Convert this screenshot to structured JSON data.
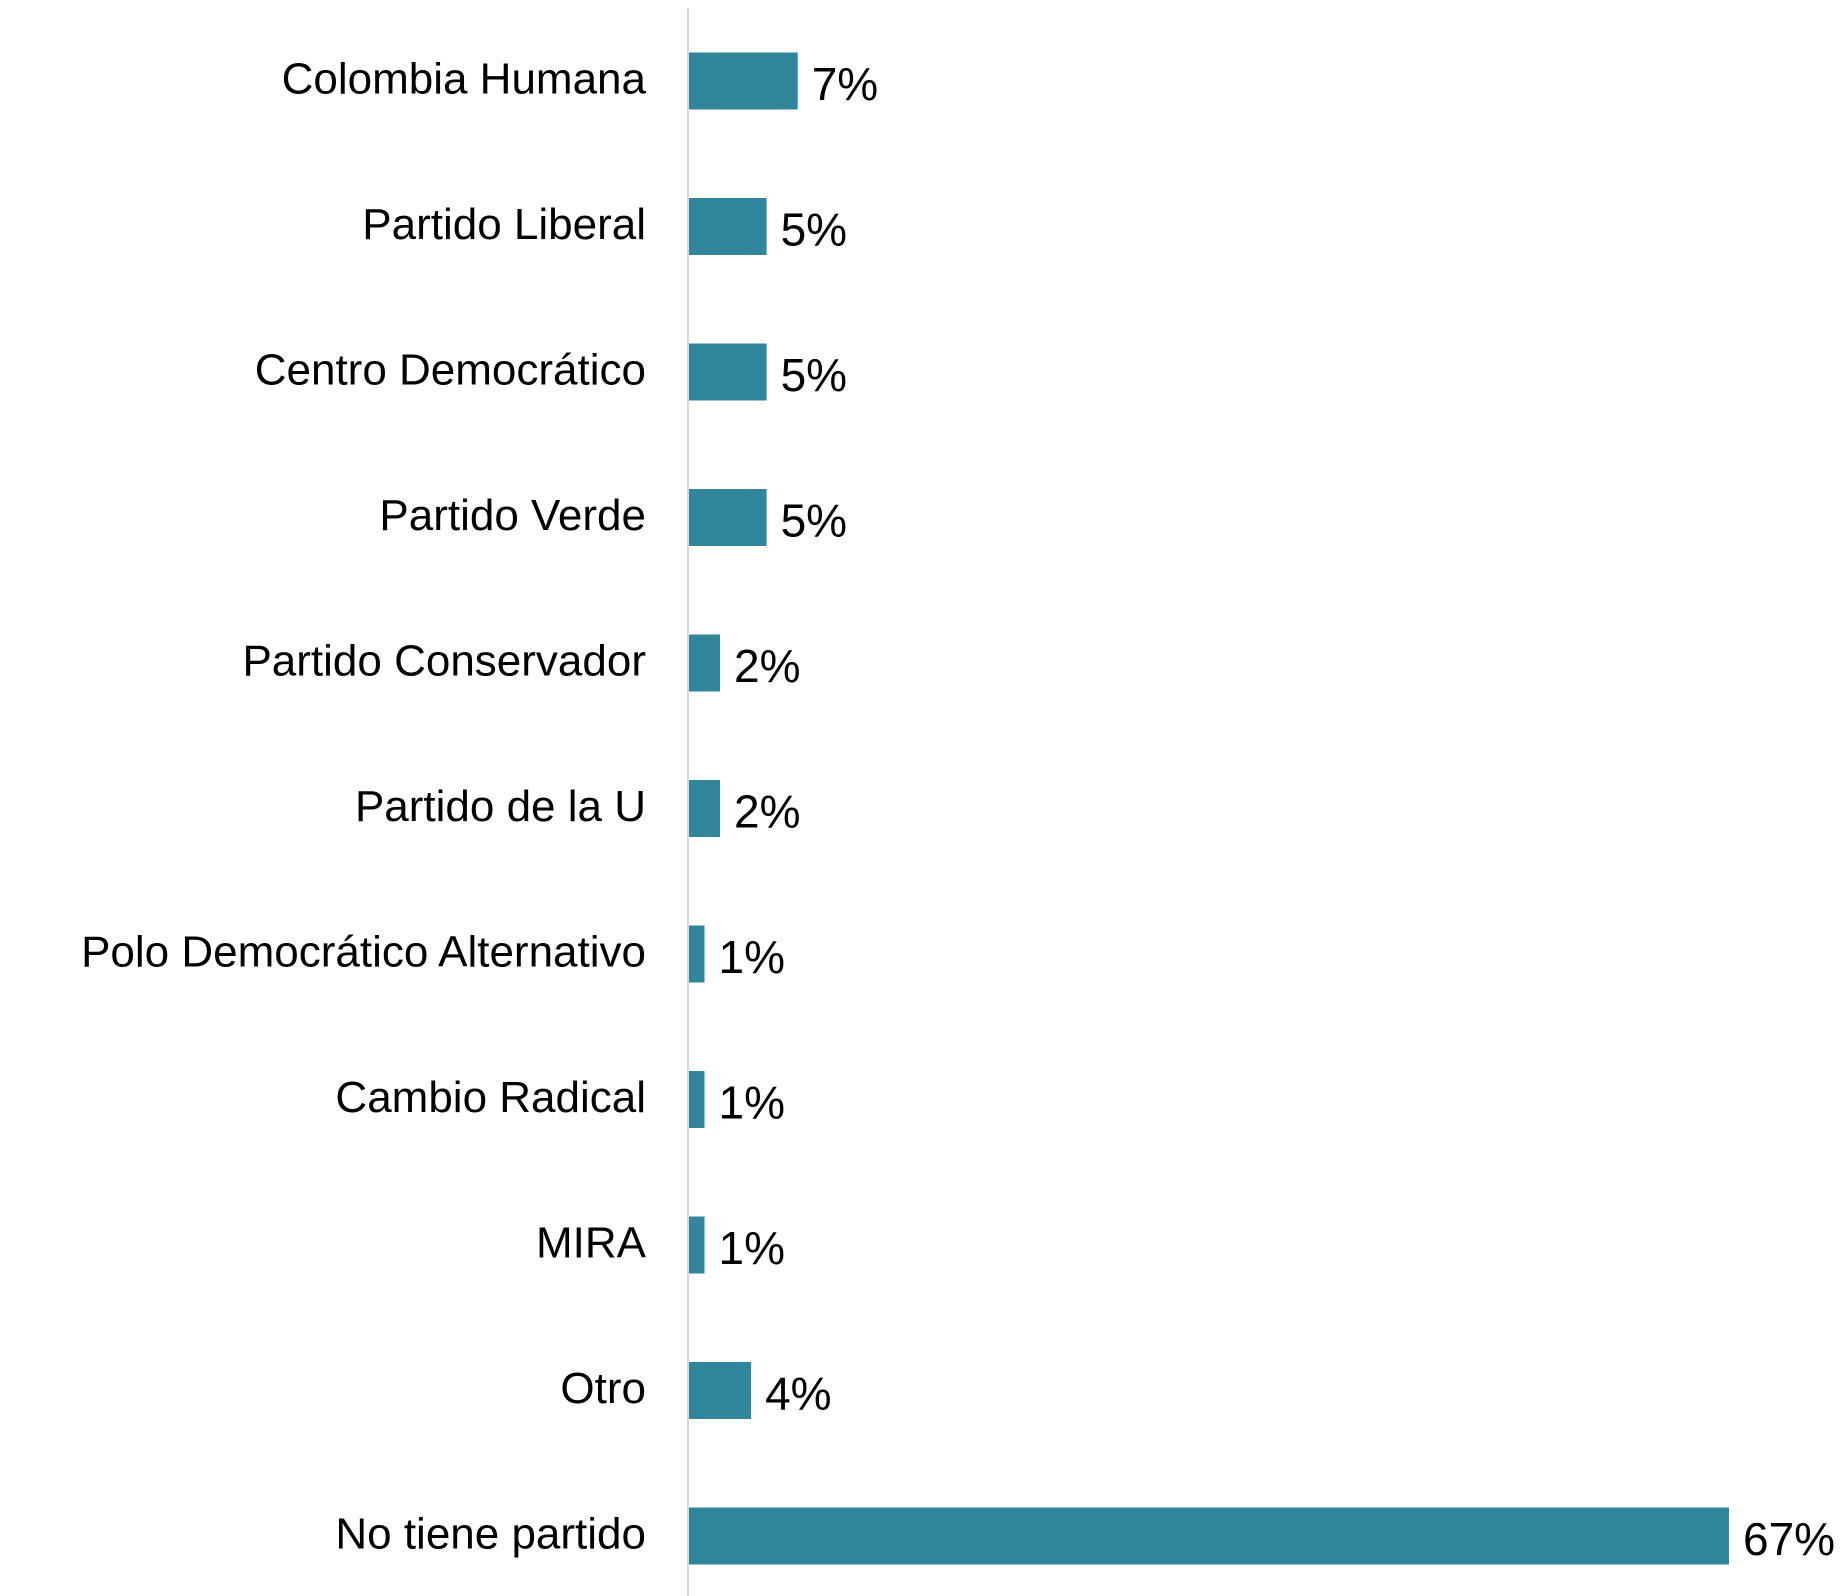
{
  "chart_data": {
    "type": "bar",
    "orientation": "horizontal",
    "categories": [
      "Colombia Humana",
      "Partido Liberal",
      "Centro Democrático",
      "Partido Verde",
      "Partido Conservador",
      "Partido de la U",
      "Polo Democrático Alternativo",
      "Cambio Radical",
      "MIRA",
      "Otro",
      "No tiene partido"
    ],
    "values": [
      7,
      5,
      5,
      5,
      2,
      2,
      1,
      1,
      1,
      4,
      67
    ],
    "value_labels": [
      "7%",
      "5%",
      "5%",
      "5%",
      "2%",
      "2%",
      "1%",
      "1%",
      "1%",
      "4%",
      "67%"
    ],
    "xlim": [
      0,
      67
    ],
    "grid": false,
    "legend": "none",
    "bar_color": "#31869b",
    "axis_color": "#d9d9d9"
  }
}
